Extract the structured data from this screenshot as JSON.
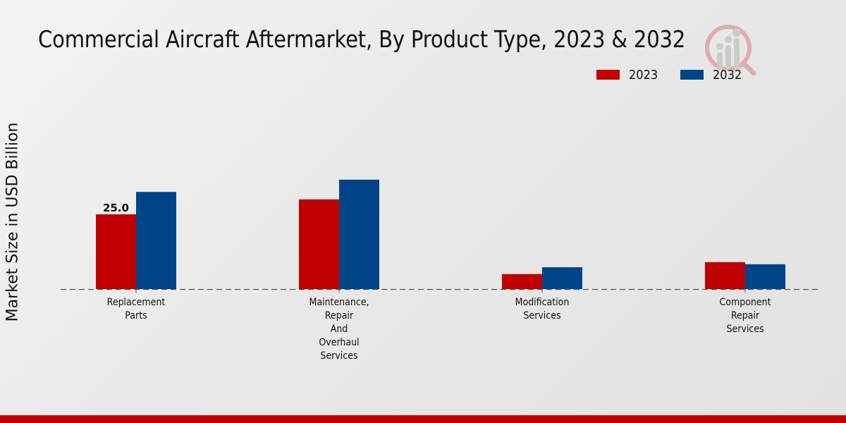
{
  "chart_data": {
    "type": "bar",
    "title": "Commercial Aircraft Aftermarket, By Product Type, 2023 & 2032",
    "xlabel": "",
    "ylabel": "Market Size in USD Billion",
    "categories": [
      [
        "Replacement",
        "Parts"
      ],
      [
        "Maintenance,",
        "Repair",
        "And",
        "Overhaul",
        "Services"
      ],
      [
        "Modification",
        "Services"
      ],
      [
        "Component",
        "Repair",
        "Services"
      ]
    ],
    "category_names": [
      "Replacement Parts",
      "Maintenance, Repair And Overhaul Services",
      "Modification Services",
      "Component Repair Services"
    ],
    "series": [
      {
        "name": "2023",
        "color": "#c00000",
        "values": [
          25.0,
          30.0,
          5.0,
          9.0
        ]
      },
      {
        "name": "2032",
        "color": "#004488",
        "values": [
          32.5,
          36.6,
          7.3,
          8.3
        ]
      }
    ],
    "data_labels": [
      {
        "series": 0,
        "index": 0,
        "text": "25.0"
      }
    ],
    "ylim": [
      0,
      45
    ],
    "grid": false,
    "baseline_style": "dashed",
    "legend": {
      "position": "top-right",
      "entries": [
        "2023",
        "2032"
      ]
    }
  },
  "footer_color": "#c00000"
}
